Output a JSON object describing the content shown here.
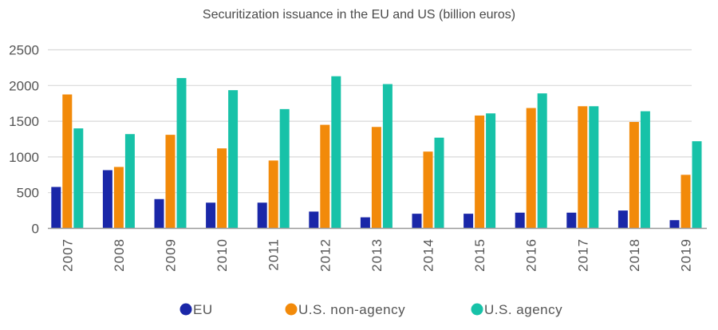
{
  "chart_data": {
    "type": "bar",
    "title": "Securitization issuance in the EU and US (billion euros)",
    "xlabel": "",
    "ylabel": "",
    "categories": [
      "2007",
      "2008",
      "2009",
      "2010",
      "2011",
      "2012",
      "2013",
      "2014",
      "2015",
      "2016",
      "2017",
      "2018",
      "2019"
    ],
    "series": [
      {
        "name": "EU",
        "color": "#1a27a8",
        "values": [
          580,
          815,
          410,
          360,
          360,
          235,
          155,
          205,
          205,
          220,
          220,
          250,
          115
        ]
      },
      {
        "name": "U.S. non-agency",
        "color": "#f28a0a",
        "values": [
          1875,
          860,
          1310,
          1120,
          950,
          1450,
          1420,
          1075,
          1580,
          1685,
          1710,
          1490,
          750
        ]
      },
      {
        "name": "U.S. agency",
        "color": "#17c2a8",
        "values": [
          1400,
          1320,
          2105,
          1935,
          1670,
          2130,
          2020,
          1270,
          1610,
          1890,
          1710,
          1640,
          1220
        ]
      }
    ],
    "ylim": [
      0,
      2500
    ],
    "yticks": [
      "0",
      "500",
      "1000",
      "1500",
      "2000",
      "2500"
    ],
    "ytick_values": [
      0,
      500,
      1000,
      1500,
      2000,
      2500
    ],
    "grid": true,
    "legend_position": "bottom-center"
  }
}
